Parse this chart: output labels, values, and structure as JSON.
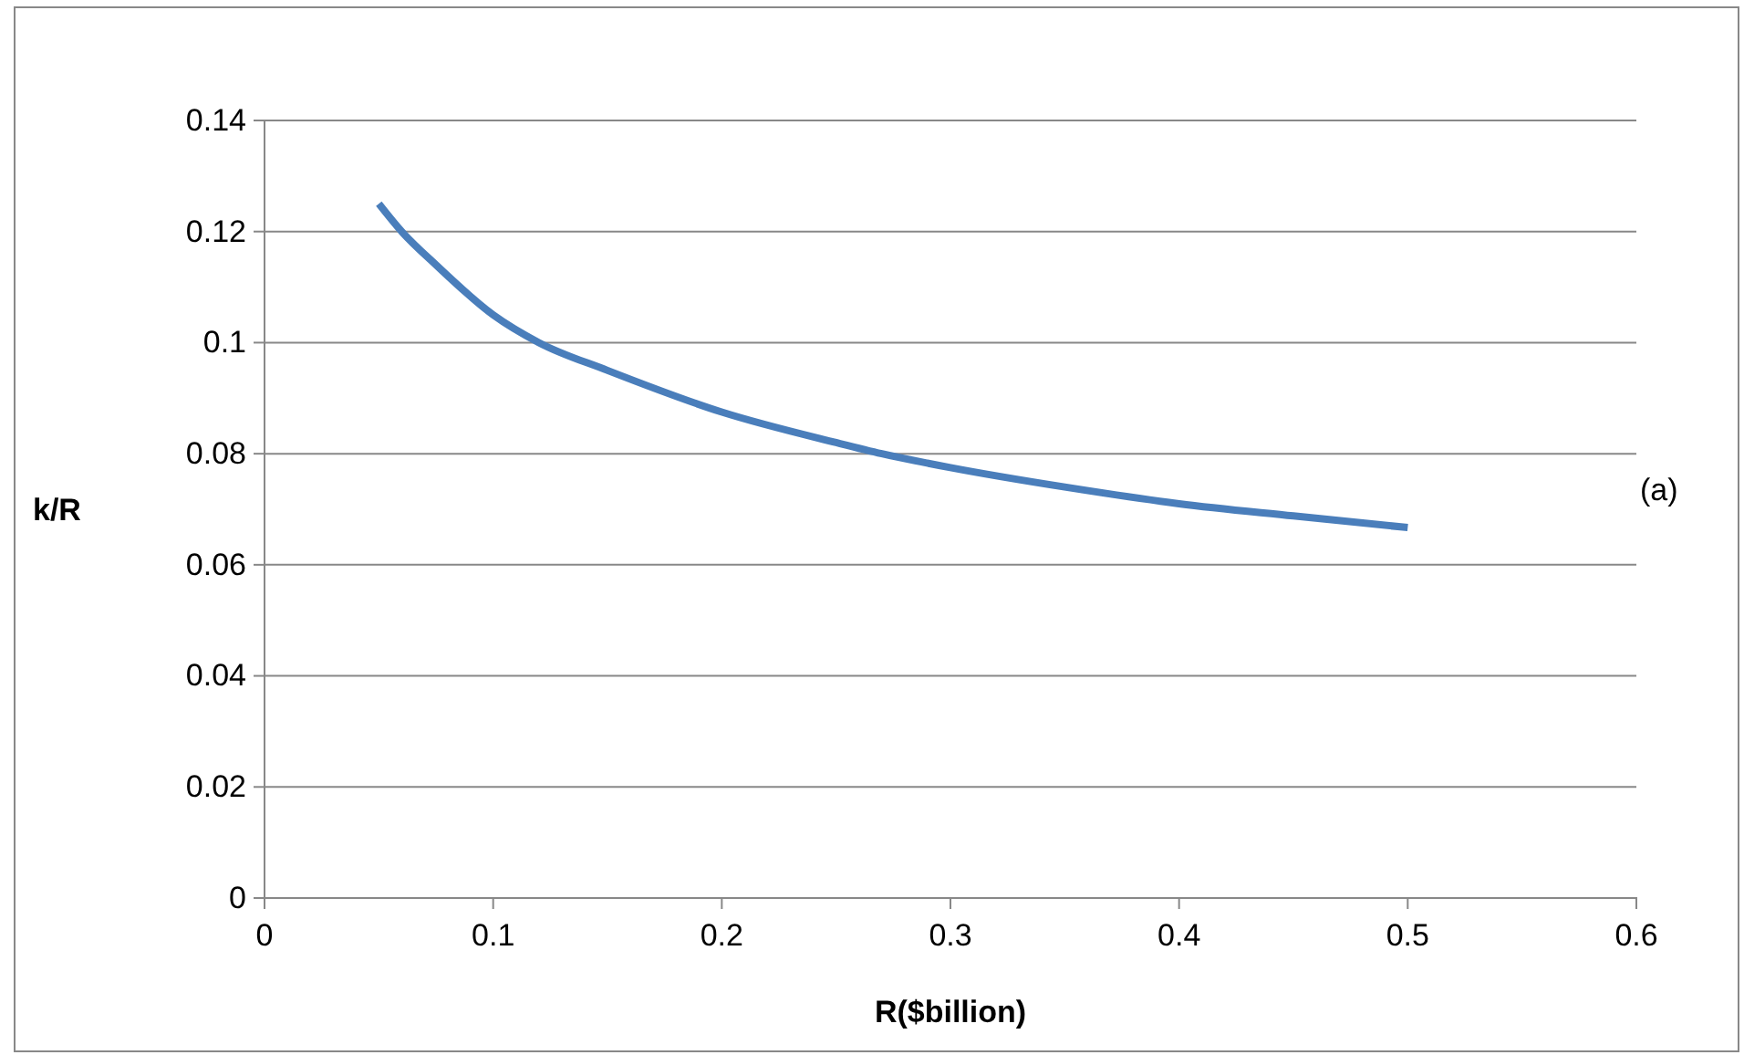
{
  "chart_data": {
    "type": "line",
    "xlabel": "R($billion)",
    "ylabel": "k/R",
    "annotations": [
      "(a)"
    ],
    "x": [
      0.05,
      0.06,
      0.075,
      0.1,
      0.12,
      0.15,
      0.2,
      0.25,
      0.27,
      0.3,
      0.35,
      0.4,
      0.45,
      0.5
    ],
    "series": [
      {
        "color": "#4a7ebb",
        "values": [
          0.125,
          0.12,
          0.114,
          0.105,
          0.1,
          0.095,
          0.0875,
          0.082,
          0.08,
          0.0775,
          0.074,
          0.071,
          0.0688,
          0.0667
        ]
      }
    ],
    "xlim": [
      0,
      0.6
    ],
    "xticks": [
      0,
      0.1,
      0.2,
      0.3,
      0.4,
      0.5,
      0.6
    ],
    "ylim": [
      0,
      0.14
    ],
    "yticks": [
      0,
      0.02,
      0.04,
      0.06,
      0.08,
      0.1,
      0.12,
      0.14
    ],
    "grid": "y",
    "marker": "none",
    "line_style": "solid"
  }
}
